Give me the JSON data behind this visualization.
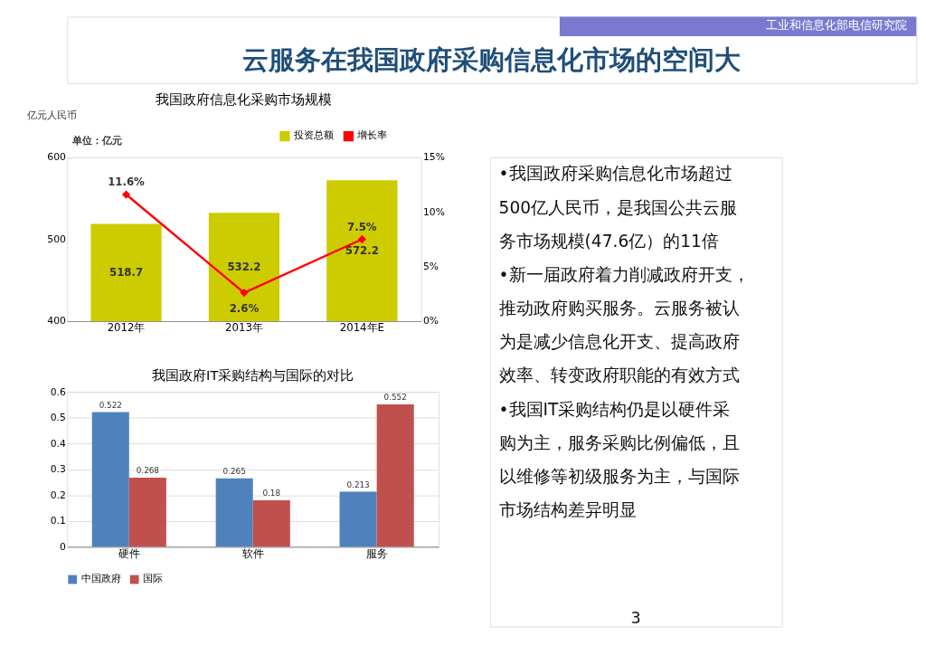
{
  "chart_data": [
    {
      "type": "other",
      "title": "云服务在我国政府采购信息化市场的空间大",
      "annotations": [
        "工业和信息化部电信研究院"
      ]
    },
    {
      "type": "bar",
      "title": "我国政府信息化采购市场规模",
      "categories": [
        "2012年",
        "2013年",
        "2014年E"
      ],
      "series": [
        {
          "name": "投资总额",
          "color": "#cccc00",
          "values": [
            518.7,
            532.2,
            572.2
          ],
          "value_labels": [
            "518.7",
            "532.2",
            "572.2"
          ]
        },
        {
          "name": "增长率",
          "type": "line",
          "axis": "y2",
          "color": "#ff0000",
          "values": [
            11.6,
            2.6,
            7.5
          ],
          "value_labels": [
            "11.6%",
            "2.6%",
            "7.5%"
          ]
        }
      ],
      "ylim": [
        400,
        600
      ],
      "yticks": [
        400,
        500,
        600
      ],
      "y2lim": [
        0,
        15
      ],
      "y2ticks": [
        {
          "value": 0,
          "label": "0%"
        },
        {
          "value": 5,
          "label": "5%"
        },
        {
          "value": 10,
          "label": "10%"
        },
        {
          "value": 15,
          "label": "15%"
        }
      ],
      "marker": "diamond",
      "legend": "top right",
      "annotations": [
        "亿元人民币",
        "单位：亿元"
      ]
    },
    {
      "type": "bar",
      "title": "我国政府IT采购结构与国际的对比",
      "categories": [
        "硬件",
        "软件",
        "服务"
      ],
      "series": [
        {
          "name": "中国政府",
          "color": "#4f81bd",
          "values": [
            0.522,
            0.265,
            0.213
          ]
        },
        {
          "name": "国际",
          "color": "#c0504d",
          "values": [
            0.268,
            0.18,
            0.552
          ]
        }
      ],
      "ylim": [
        0,
        0.6
      ],
      "yticks": [
        0,
        0.1,
        0.2,
        0.3,
        0.4,
        0.5,
        0.6
      ],
      "data_labels": true,
      "grid": "y",
      "legend": "bottom"
    },
    {
      "type": "other",
      "annotations": [
        "•我国政府采购信息化市场超过500亿人民币，是我国公共云服务市场规模(47.6亿）的11倍",
        "•新一届政府着力削减政府开支，推动政府购买服务。云服务被认为是减少信息化开支、提高政府效率、转变政府职能的有效方式",
        "•我国IT采购结构仍是以硬件采购为主，服务采购比例偏低，且以维修等初级服务为主，与国际市场结构差异明显",
        "3"
      ]
    }
  ]
}
